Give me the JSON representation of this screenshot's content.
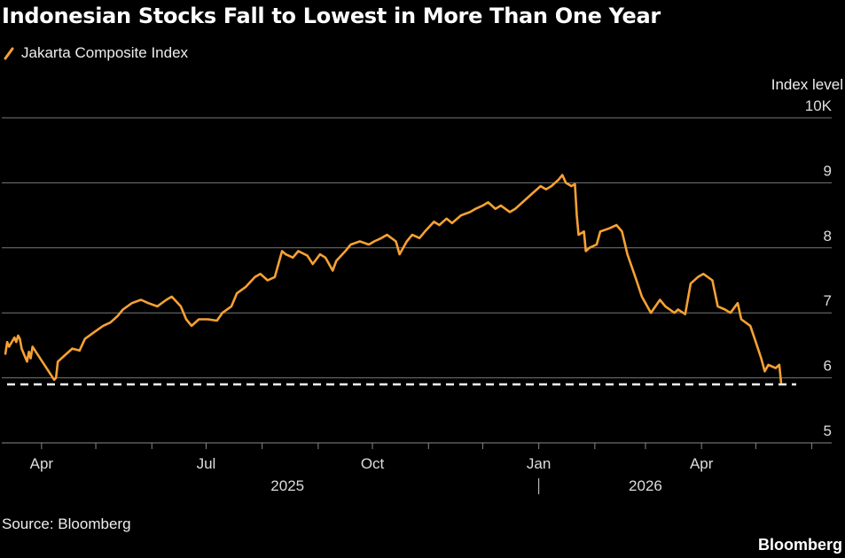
{
  "title": "Indonesian Stocks Fall to Lowest in More Than One Year",
  "source": "Source: Bloomberg",
  "brand": "Bloomberg",
  "chart_data": {
    "type": "line",
    "ylabel": "Index level",
    "y_ticks": [
      {
        "value": 10,
        "label": "10K"
      },
      {
        "value": 9,
        "label": "9"
      },
      {
        "value": 8,
        "label": "8"
      },
      {
        "value": 7,
        "label": "7"
      },
      {
        "value": 6,
        "label": "6"
      },
      {
        "value": 5,
        "label": "5"
      }
    ],
    "ylim": [
      5,
      10
    ],
    "xlim": [
      "2025-03-10",
      "2026-06-12"
    ],
    "x_ticks": [
      {
        "date": "2025-04-01",
        "label": "Apr"
      },
      {
        "date": "2025-07-01",
        "label": "Jul"
      },
      {
        "date": "2025-10-01",
        "label": "Oct"
      },
      {
        "date": "2026-01-01",
        "label": "Jan"
      },
      {
        "date": "2026-04-01",
        "label": "Apr"
      }
    ],
    "year_labels": [
      {
        "date": "2025-08-15",
        "label": "2025"
      },
      {
        "date": "2026-03-01",
        "label": "2026"
      }
    ],
    "year_divider": "2026-01-01",
    "reference_line": {
      "value": 5.9,
      "style": "dashed",
      "color": "#ffffff"
    },
    "grid": true,
    "series": [
      {
        "name": "Jakarta Composite Index",
        "color": "#f7a133",
        "points": [
          [
            "2025-03-12",
            6.37
          ],
          [
            "2025-03-13",
            6.55
          ],
          [
            "2025-03-14",
            6.48
          ],
          [
            "2025-03-17",
            6.62
          ],
          [
            "2025-03-18",
            6.55
          ],
          [
            "2025-03-19",
            6.65
          ],
          [
            "2025-03-20",
            6.6
          ],
          [
            "2025-03-21",
            6.45
          ],
          [
            "2025-03-24",
            6.25
          ],
          [
            "2025-03-25",
            6.4
          ],
          [
            "2025-03-26",
            6.3
          ],
          [
            "2025-03-27",
            6.48
          ],
          [
            "2025-04-08",
            5.97
          ],
          [
            "2025-04-09",
            6.0
          ],
          [
            "2025-04-10",
            6.25
          ],
          [
            "2025-04-14",
            6.35
          ],
          [
            "2025-04-18",
            6.45
          ],
          [
            "2025-04-22",
            6.42
          ],
          [
            "2025-04-25",
            6.6
          ],
          [
            "2025-04-30",
            6.7
          ],
          [
            "2025-05-05",
            6.8
          ],
          [
            "2025-05-09",
            6.85
          ],
          [
            "2025-05-13",
            6.95
          ],
          [
            "2025-05-16",
            7.05
          ],
          [
            "2025-05-21",
            7.15
          ],
          [
            "2025-05-26",
            7.2
          ],
          [
            "2025-05-30",
            7.15
          ],
          [
            "2025-06-04",
            7.1
          ],
          [
            "2025-06-09",
            7.2
          ],
          [
            "2025-06-12",
            7.25
          ],
          [
            "2025-06-17",
            7.1
          ],
          [
            "2025-06-20",
            6.9
          ],
          [
            "2025-06-23",
            6.8
          ],
          [
            "2025-06-27",
            6.9
          ],
          [
            "2025-07-02",
            6.9
          ],
          [
            "2025-07-07",
            6.88
          ],
          [
            "2025-07-10",
            7.0
          ],
          [
            "2025-07-15",
            7.1
          ],
          [
            "2025-07-18",
            7.3
          ],
          [
            "2025-07-23",
            7.4
          ],
          [
            "2025-07-28",
            7.55
          ],
          [
            "2025-07-31",
            7.6
          ],
          [
            "2025-08-04",
            7.5
          ],
          [
            "2025-08-08",
            7.55
          ],
          [
            "2025-08-12",
            7.95
          ],
          [
            "2025-08-14",
            7.9
          ],
          [
            "2025-08-18",
            7.85
          ],
          [
            "2025-08-21",
            7.95
          ],
          [
            "2025-08-26",
            7.88
          ],
          [
            "2025-08-29",
            7.75
          ],
          [
            "2025-09-02",
            7.9
          ],
          [
            "2025-09-05",
            7.85
          ],
          [
            "2025-09-09",
            7.65
          ],
          [
            "2025-09-11",
            7.8
          ],
          [
            "2025-09-16",
            7.95
          ],
          [
            "2025-09-19",
            8.05
          ],
          [
            "2025-09-24",
            8.1
          ],
          [
            "2025-09-29",
            8.05
          ],
          [
            "2025-10-02",
            8.1
          ],
          [
            "2025-10-06",
            8.15
          ],
          [
            "2025-10-09",
            8.2
          ],
          [
            "2025-10-14",
            8.1
          ],
          [
            "2025-10-16",
            7.9
          ],
          [
            "2025-10-20",
            8.1
          ],
          [
            "2025-10-23",
            8.2
          ],
          [
            "2025-10-27",
            8.15
          ],
          [
            "2025-10-30",
            8.25
          ],
          [
            "2025-11-04",
            8.4
          ],
          [
            "2025-11-07",
            8.35
          ],
          [
            "2025-11-11",
            8.45
          ],
          [
            "2025-11-14",
            8.38
          ],
          [
            "2025-11-19",
            8.5
          ],
          [
            "2025-11-24",
            8.55
          ],
          [
            "2025-11-27",
            8.6
          ],
          [
            "2025-12-01",
            8.65
          ],
          [
            "2025-12-04",
            8.7
          ],
          [
            "2025-12-08",
            8.6
          ],
          [
            "2025-12-11",
            8.65
          ],
          [
            "2025-12-16",
            8.55
          ],
          [
            "2025-12-19",
            8.6
          ],
          [
            "2025-12-23",
            8.7
          ],
          [
            "2025-12-29",
            8.85
          ],
          [
            "2026-01-02",
            8.95
          ],
          [
            "2026-01-05",
            8.9
          ],
          [
            "2026-01-08",
            8.95
          ],
          [
            "2026-01-12",
            9.05
          ],
          [
            "2026-01-14",
            9.12
          ],
          [
            "2026-01-16",
            9.0
          ],
          [
            "2026-01-19",
            8.95
          ],
          [
            "2026-01-21",
            8.98
          ],
          [
            "2026-01-22",
            8.5
          ],
          [
            "2026-01-23",
            8.2
          ],
          [
            "2026-01-26",
            8.25
          ],
          [
            "2026-01-27",
            7.95
          ],
          [
            "2026-01-29",
            8.0
          ],
          [
            "2026-02-02",
            8.05
          ],
          [
            "2026-02-04",
            8.25
          ],
          [
            "2026-02-09",
            8.3
          ],
          [
            "2026-02-13",
            8.35
          ],
          [
            "2026-02-16",
            8.25
          ],
          [
            "2026-02-19",
            7.9
          ],
          [
            "2026-02-24",
            7.5
          ],
          [
            "2026-02-27",
            7.25
          ],
          [
            "2026-03-04",
            7.0
          ],
          [
            "2026-03-09",
            7.2
          ],
          [
            "2026-03-12",
            7.1
          ],
          [
            "2026-03-17",
            7.0
          ],
          [
            "2026-03-19",
            7.05
          ],
          [
            "2026-03-23",
            6.98
          ],
          [
            "2026-03-26",
            7.45
          ],
          [
            "2026-03-30",
            7.55
          ],
          [
            "2026-04-02",
            7.6
          ],
          [
            "2026-04-07",
            7.5
          ],
          [
            "2026-04-10",
            7.1
          ],
          [
            "2026-04-14",
            7.05
          ],
          [
            "2026-04-17",
            7.0
          ],
          [
            "2026-04-21",
            7.15
          ],
          [
            "2026-04-23",
            6.9
          ],
          [
            "2026-04-28",
            6.8
          ],
          [
            "2026-05-01",
            6.55
          ],
          [
            "2026-05-04",
            6.3
          ],
          [
            "2026-05-06",
            6.1
          ],
          [
            "2026-05-08",
            6.2
          ],
          [
            "2026-05-12",
            6.15
          ],
          [
            "2026-05-14",
            6.2
          ],
          [
            "2026-05-15",
            5.93
          ]
        ]
      }
    ]
  }
}
